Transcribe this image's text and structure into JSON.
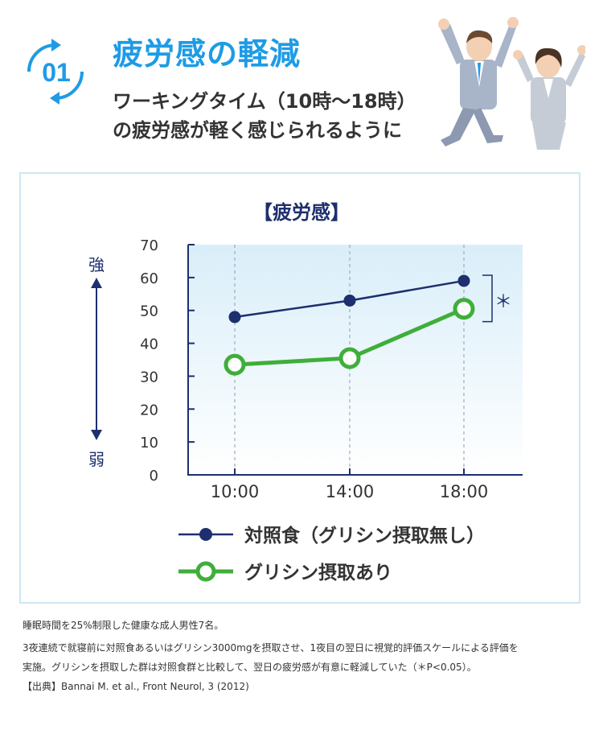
{
  "header": {
    "number": "01",
    "title": "疲労感の軽減",
    "subtitle_line1": "ワーキングタイム（10時〜18時）",
    "subtitle_line2": "の疲労感が軽く感じられるように"
  },
  "colors": {
    "accent": "#1e9be6",
    "navy": "#1d2f6e",
    "green": "#3fae3a",
    "panel_border": "#cde7f3"
  },
  "chart_data": {
    "type": "line",
    "title": "【疲労感】",
    "categories": [
      "10:00",
      "14:00",
      "18:00"
    ],
    "ylim": [
      0,
      70
    ],
    "yticks": [
      0,
      10,
      20,
      30,
      40,
      50,
      60,
      70
    ],
    "grid": "vertical-dashed",
    "series": [
      {
        "name": "対照食（グリシン摂取無し）",
        "values": [
          48,
          53,
          59
        ],
        "color": "#1d2f6e",
        "marker": "filled-circle"
      },
      {
        "name": "グリシン摂取あり",
        "values": [
          33.5,
          35.5,
          50.5
        ],
        "color": "#3fae3a",
        "marker": "open-circle"
      }
    ],
    "scale_labels": {
      "top": "強",
      "bottom": "弱"
    },
    "significance": "＊",
    "legend_position": "bottom-center"
  },
  "notes": [
    "睡眠時間を25%制限した健康な成人男性7名。",
    "3夜連続で就寝前に対照食あるいはグリシン3000mgを摂取させ、1夜目の翌日に視覚的評価スケールによる評価を",
    "実施。グリシンを摂取した群は対照食群と比較して、翌日の疲労感が有意に軽減していた（＊P<0.05）。",
    "【出典】Bannai M. et al., Front Neurol, 3 (2012)"
  ]
}
